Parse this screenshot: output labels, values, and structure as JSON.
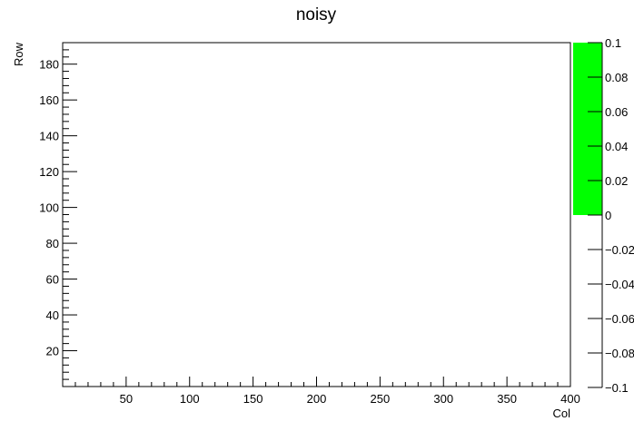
{
  "chart_data": {
    "type": "heatmap",
    "title": "noisy",
    "xlabel": "Col",
    "ylabel": "Row",
    "xlim": [
      0,
      400
    ],
    "ylim": [
      0,
      192
    ],
    "x_ticks": [
      50,
      100,
      150,
      200,
      250,
      300,
      350,
      400
    ],
    "x_tick_labels": [
      "50",
      "100",
      "150",
      "200",
      "250",
      "300",
      "350",
      "400"
    ],
    "y_ticks": [
      20,
      40,
      60,
      80,
      100,
      120,
      140,
      160,
      180
    ],
    "y_tick_labels": [
      "20",
      "40",
      "60",
      "80",
      "100",
      "120",
      "140",
      "160",
      "180"
    ],
    "cells": [],
    "colorbar": {
      "range": [
        -0.1,
        0.1
      ],
      "ticks": [
        0.1,
        0.08,
        0.06,
        0.04,
        0.02,
        0,
        -0.02,
        -0.04,
        -0.06,
        -0.08,
        -0.1
      ],
      "tick_labels": [
        "0.1",
        "0.08",
        "0.06",
        "0.04",
        "0.02",
        "0",
        "−0.02",
        "−0.04",
        "−0.06",
        "−0.08",
        "−0.1"
      ],
      "fill_range": [
        0,
        0.1
      ],
      "fill_color": "#00ff00"
    },
    "grid": false
  }
}
